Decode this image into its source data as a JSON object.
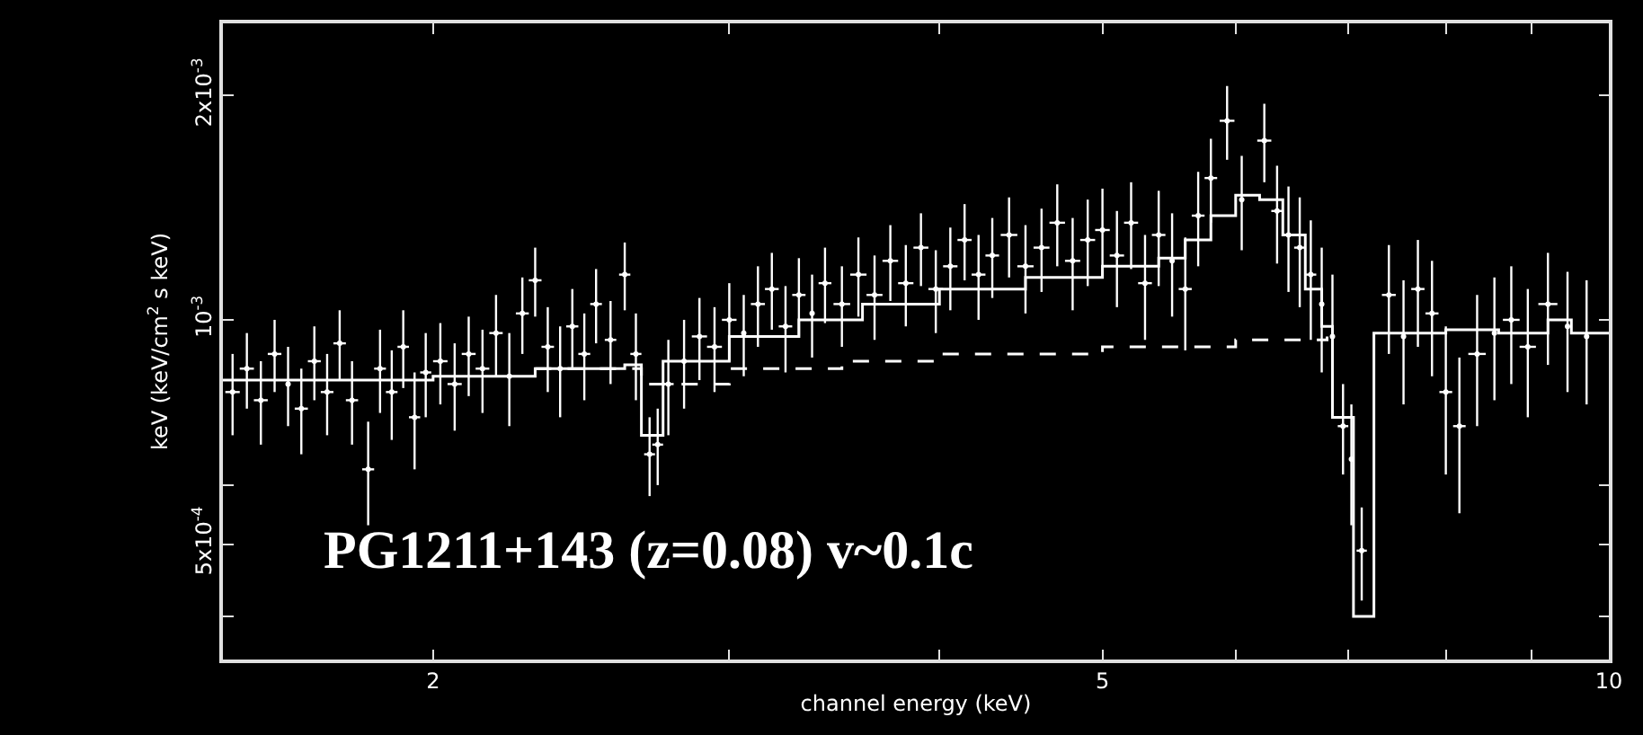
{
  "chart_data": {
    "type": "scatter",
    "xlabel": "channel energy (keV)",
    "ylabel": "keV (keV/cm$^{2}$ s keV)",
    "log": "xy",
    "grid": false,
    "xlim": [
      1.5,
      10
    ],
    "ylim": [
      0.00035,
      0.0025
    ],
    "xticks": [
      2,
      {
        "value": 3,
        "label": null
      },
      {
        "value": 4,
        "label": null
      },
      5,
      {
        "value": 6,
        "label": null
      },
      {
        "value": 7,
        "label": null
      },
      {
        "value": 8,
        "label": null
      },
      {
        "value": 9,
        "label": null
      },
      10
    ],
    "yticks": [
      {
        "value": 0.0004,
        "label": null
      },
      {
        "value": 0.0005,
        "label": "5x10$^{-4}$"
      },
      {
        "value": 0.0006,
        "label": null
      },
      {
        "value": 0.001,
        "label": "10$^{-3}$"
      },
      {
        "value": 0.002,
        "label": "2x10$^{-3}$"
      }
    ],
    "annotations": [
      "PG1211+143 (z=0.08) v~0.1c"
    ],
    "series": [
      {
        "color": "#ffffff",
        "x": [
          1.52,
          1.55,
          1.58,
          1.61,
          1.64,
          1.67,
          1.7,
          1.73,
          1.76,
          1.79,
          1.83,
          1.86,
          1.89,
          1.92,
          1.95,
          1.98,
          2.02,
          2.06,
          2.1,
          2.14,
          2.18,
          2.22,
          2.26,
          2.3,
          2.34,
          2.38,
          2.42,
          2.46,
          2.5,
          2.55,
          2.6,
          2.64,
          2.69,
          2.72,
          2.76,
          2.82,
          2.88,
          2.94,
          3.0,
          3.06,
          3.12,
          3.18,
          3.24,
          3.3,
          3.36,
          3.42,
          3.5,
          3.58,
          3.66,
          3.74,
          3.82,
          3.9,
          3.98,
          4.06,
          4.14,
          4.22,
          4.3,
          4.4,
          4.5,
          4.6,
          4.7,
          4.8,
          4.9,
          5.0,
          5.1,
          5.2,
          5.3,
          5.4,
          5.5,
          5.6,
          5.7,
          5.8,
          5.93,
          6.05,
          6.24,
          6.35,
          6.45,
          6.55,
          6.65,
          6.75,
          6.85,
          6.95,
          7.03,
          7.13,
          7.4,
          7.55,
          7.7,
          7.85,
          8.0,
          8.15,
          8.35,
          8.55,
          8.75,
          8.95,
          9.2,
          9.45,
          9.7
        ],
        "values": [
          0.0008,
          0.00086,
          0.00078,
          0.0009,
          0.00082,
          0.00076,
          0.00088,
          0.0008,
          0.00093,
          0.00078,
          0.00063,
          0.00086,
          0.0008,
          0.00092,
          0.00074,
          0.00085,
          0.00088,
          0.00082,
          0.0009,
          0.00086,
          0.00096,
          0.00084,
          0.00102,
          0.00113,
          0.00092,
          0.00086,
          0.00098,
          0.0009,
          0.00105,
          0.00094,
          0.00115,
          0.0009,
          0.00066,
          0.00068,
          0.00082,
          0.00088,
          0.00095,
          0.00092,
          0.001,
          0.00096,
          0.00105,
          0.0011,
          0.00098,
          0.00108,
          0.00102,
          0.00112,
          0.00105,
          0.00115,
          0.00108,
          0.0012,
          0.00112,
          0.00125,
          0.0011,
          0.00118,
          0.00128,
          0.00115,
          0.00122,
          0.0013,
          0.00118,
          0.00125,
          0.00135,
          0.0012,
          0.00128,
          0.00132,
          0.00122,
          0.00135,
          0.00112,
          0.0013,
          0.0012,
          0.0011,
          0.00138,
          0.00155,
          0.00185,
          0.00145,
          0.00174,
          0.0014,
          0.0013,
          0.00125,
          0.00115,
          0.00105,
          0.00095,
          0.00072,
          0.00065,
          0.00049,
          0.00108,
          0.00095,
          0.0011,
          0.00102,
          0.0008,
          0.00072,
          0.0009,
          0.00096,
          0.001,
          0.00092,
          0.00105,
          0.00098,
          0.00095
        ],
        "errors": [
          0.0001,
          0.0001,
          0.0001,
          0.0001,
          0.0001,
          0.0001,
          0.0001,
          0.0001,
          0.0001,
          0.0001,
          0.0001,
          0.00011,
          0.00011,
          0.00011,
          0.00011,
          0.00011,
          0.00011,
          0.00011,
          0.00011,
          0.00011,
          0.00012,
          0.00012,
          0.00012,
          0.00012,
          0.00012,
          0.00012,
          0.00012,
          0.00012,
          0.00012,
          0.00012,
          0.00012,
          0.00012,
          8e-05,
          8e-05,
          0.00012,
          0.00012,
          0.00012,
          0.00012,
          0.00012,
          0.00012,
          0.00013,
          0.00013,
          0.00013,
          0.00013,
          0.00013,
          0.00013,
          0.00013,
          0.00014,
          0.00014,
          0.00014,
          0.00014,
          0.00014,
          0.00014,
          0.00015,
          0.00015,
          0.00015,
          0.00015,
          0.00016,
          0.00016,
          0.00016,
          0.00017,
          0.00017,
          0.00017,
          0.00018,
          0.00018,
          0.00018,
          0.00018,
          0.00019,
          0.00019,
          0.00019,
          0.0002,
          0.0002,
          0.00021,
          0.00021,
          0.00021,
          0.00021,
          0.00021,
          0.00021,
          0.00021,
          0.0002,
          0.0002,
          0.0001,
          0.00012,
          7e-05,
          0.00018,
          0.00018,
          0.00018,
          0.00018,
          0.00018,
          0.00017,
          0.00018,
          0.00018,
          0.00018,
          0.00018,
          0.00018,
          0.00018,
          0.00018
        ],
        "xerrors": [
          0.015,
          0.015,
          0.015,
          0.015,
          null,
          0.015,
          0.015,
          0.015,
          0.015,
          0.015,
          0.015,
          0.015,
          0.015,
          0.015,
          0.015,
          0.015,
          0.02,
          0.02,
          0.02,
          0.02,
          0.02,
          null,
          0.02,
          0.02,
          0.02,
          null,
          0.02,
          0.02,
          0.02,
          0.02,
          0.02,
          0.02,
          0.02,
          0.02,
          0.02,
          null,
          0.03,
          0.03,
          0.03,
          null,
          0.03,
          0.03,
          0.03,
          0.03,
          null,
          0.03,
          0.04,
          0.04,
          0.04,
          0.04,
          0.04,
          0.04,
          0.04,
          0.04,
          0.04,
          0.04,
          0.04,
          0.05,
          0.05,
          0.05,
          0.05,
          0.05,
          0.05,
          0.05,
          0.05,
          0.05,
          0.05,
          0.05,
          null,
          0.05,
          0.05,
          0.05,
          0.06,
          null,
          0.06,
          0.05,
          null,
          0.05,
          0.05,
          null,
          null,
          0.05,
          null,
          0.05,
          0.07,
          null,
          0.07,
          0.07,
          0.07,
          0.07,
          0.1,
          null,
          0.1,
          0.1,
          0.12,
          null,
          null
        ]
      },
      {
        "type": "step",
        "color": "#ffffff",
        "line_style": "solid",
        "x": [
          1.5,
          2.0,
          2.3,
          2.6,
          2.66,
          2.74,
          3.0,
          3.3,
          3.6,
          4.0,
          4.5,
          5.0,
          5.4,
          5.6,
          5.8,
          6.0,
          6.2,
          6.4,
          6.6,
          6.75,
          6.85,
          7.05,
          7.25,
          8.0,
          8.6,
          9.2,
          9.5,
          10.0
        ],
        "values": [
          0.00083,
          0.00084,
          0.00086,
          0.00087,
          0.0007,
          0.00088,
          0.00095,
          0.001,
          0.00105,
          0.0011,
          0.00114,
          0.00118,
          0.00121,
          0.00128,
          0.00138,
          0.00147,
          0.00145,
          0.0013,
          0.0011,
          0.00098,
          0.00074,
          0.0004,
          0.00096,
          0.00097,
          0.00096,
          0.001,
          0.00096,
          0.00096
        ]
      },
      {
        "type": "step",
        "color": "#ffffff",
        "line_style": "dashed",
        "x": [
          2.3,
          2.66,
          3.0,
          3.5,
          4.0,
          5.0,
          6.0,
          6.8
        ],
        "values": [
          0.00086,
          0.00082,
          0.00086,
          0.00088,
          0.0009,
          0.00092,
          0.00094,
          0.00095
        ]
      }
    ]
  }
}
